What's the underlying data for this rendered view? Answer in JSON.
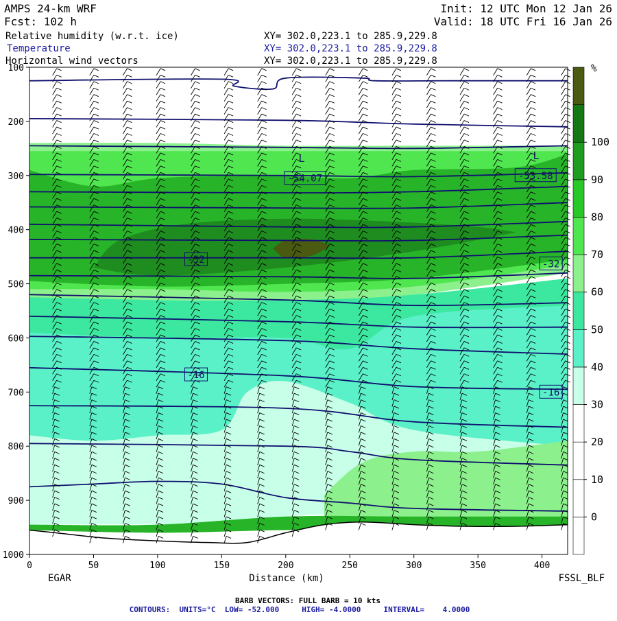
{
  "header": {
    "model": "AMPS 24-km WRF",
    "forecast": "Fcst:  102 h",
    "init": "Init: 12 UTC Mon 12 Jan 26",
    "valid": "Valid: 18 UTC Fri 16 Jan 26",
    "fields": [
      {
        "name": "Relative humidity (w.r.t. ice)",
        "xy": "XY= 302.0,223.1 to 285.9,229.8",
        "color": "#000000"
      },
      {
        "name": "Temperature",
        "xy": "XY= 302.0,223.1 to 285.9,229.8",
        "color": "#1a1aa0"
      },
      {
        "name": "Horizontal wind vectors",
        "xy": "XY= 302.0,223.1 to 285.9,229.8",
        "color": "#000000"
      }
    ]
  },
  "footer": {
    "left_endpoint": "EGAR",
    "right_endpoint": "FSSL_BLF",
    "barb_note": "BARB VECTORS:  FULL BARB = 10 kts",
    "contours_note": "CONTOURS:  UNITS=°C  LOW= -52.000     HIGH= -4.0000     INTERVAL=    4.0000"
  },
  "colors": {
    "temperature_contour": "#101070",
    "rh_80_90": "#28b428",
    "rh_90_100": "#1e8c1e",
    "rh_100_plus": "#4a5a10"
  },
  "chart_data": {
    "type": "heatmap",
    "title": "",
    "xlabel": "Distance (km)",
    "ylabel": "",
    "x_range": [
      0,
      420
    ],
    "y_range": [
      1000,
      100
    ],
    "x_ticks": [
      0,
      50,
      100,
      150,
      200,
      250,
      300,
      350,
      400
    ],
    "y_ticks": [
      100,
      200,
      300,
      400,
      500,
      600,
      700,
      800,
      900,
      1000
    ],
    "colorbar": {
      "unit": "%",
      "levels": [
        -10,
        0,
        10,
        20,
        30,
        40,
        50,
        60,
        70,
        80,
        90,
        100,
        110
      ],
      "labels": [
        0,
        10,
        20,
        30,
        40,
        50,
        60,
        70,
        80,
        90,
        100
      ],
      "colors": [
        "#ffffff",
        "#ffffff",
        "#ffffff",
        "#ffffff",
        "#c8ffe8",
        "#5af0c8",
        "#3ce8a0",
        "#8cf08c",
        "#50e650",
        "#28c828",
        "#1e9c1e",
        "#147814",
        "#4a5a10"
      ]
    },
    "rh_bands": [
      {
        "label": "30-40",
        "color": "#c8ffe8",
        "top": [
          [
            0,
            610
          ],
          [
            100,
            600
          ],
          [
            200,
            590
          ],
          [
            250,
            570
          ],
          [
            300,
            560
          ],
          [
            350,
            555
          ],
          [
            420,
            550
          ]
        ],
        "bottom": [
          [
            0,
            945
          ],
          [
            100,
            945
          ],
          [
            150,
            950
          ],
          [
            200,
            930
          ],
          [
            250,
            925
          ],
          [
            300,
            925
          ],
          [
            420,
            925
          ]
        ]
      },
      {
        "label": "40-50",
        "color": "#5af0c8",
        "top": [
          [
            0,
            560
          ],
          [
            100,
            560
          ],
          [
            200,
            555
          ],
          [
            250,
            540
          ],
          [
            300,
            530
          ],
          [
            350,
            520
          ],
          [
            420,
            510
          ]
        ],
        "bottom": [
          [
            0,
            780
          ],
          [
            50,
            790
          ],
          [
            100,
            780
          ],
          [
            150,
            770
          ],
          [
            170,
            700
          ],
          [
            200,
            680
          ],
          [
            250,
            720
          ],
          [
            300,
            770
          ],
          [
            420,
            800
          ]
        ]
      },
      {
        "label": "50-60",
        "color": "#3ce8a0",
        "top": [
          [
            0,
            520
          ],
          [
            100,
            530
          ],
          [
            200,
            530
          ],
          [
            300,
            520
          ],
          [
            420,
            490
          ]
        ],
        "bottom": [
          [
            0,
            590
          ],
          [
            100,
            600
          ],
          [
            200,
            600
          ],
          [
            250,
            620
          ],
          [
            300,
            560
          ],
          [
            420,
            540
          ]
        ]
      },
      {
        "label": "60-70",
        "color": "#8cf08c",
        "top": [
          [
            0,
            240
          ],
          [
            100,
            240
          ],
          [
            200,
            245
          ],
          [
            300,
            245
          ],
          [
            420,
            245
          ]
        ],
        "bottom": [
          [
            0,
            525
          ],
          [
            100,
            530
          ],
          [
            200,
            530
          ],
          [
            300,
            520
          ],
          [
            420,
            480
          ]
        ]
      },
      {
        "label": "70-80",
        "color": "#50e650",
        "top": [
          [
            0,
            255
          ],
          [
            100,
            255
          ],
          [
            200,
            255
          ],
          [
            300,
            255
          ],
          [
            420,
            255
          ]
        ],
        "bottom": [
          [
            0,
            510
          ],
          [
            100,
            510
          ],
          [
            200,
            515
          ],
          [
            300,
            505
          ],
          [
            420,
            465
          ]
        ]
      },
      {
        "label": "80-90",
        "color": "#28b428",
        "top": [
          [
            0,
            290
          ],
          [
            50,
            320
          ],
          [
            100,
            305
          ],
          [
            180,
            300
          ],
          [
            250,
            305
          ],
          [
            300,
            290
          ],
          [
            380,
            285
          ],
          [
            420,
            260
          ]
        ],
        "bottom": [
          [
            0,
            495
          ],
          [
            100,
            505
          ],
          [
            200,
            500
          ],
          [
            300,
            490
          ],
          [
            420,
            455
          ]
        ]
      },
      {
        "label": "90-100",
        "color": "#1e8c1e",
        "top": [
          [
            50,
            470
          ],
          [
            70,
            420
          ],
          [
            120,
            390
          ],
          [
            200,
            380
          ],
          [
            280,
            385
          ],
          [
            350,
            395
          ],
          [
            380,
            405
          ]
        ],
        "bottom": [
          [
            380,
            405
          ],
          [
            300,
            440
          ],
          [
            200,
            470
          ],
          [
            100,
            485
          ],
          [
            50,
            470
          ]
        ]
      },
      {
        "label": "100+",
        "color": "#4a5a10",
        "top": [
          [
            190,
            435
          ],
          [
            200,
            420
          ],
          [
            220,
            418
          ],
          [
            235,
            430
          ]
        ],
        "bottom": [
          [
            235,
            430
          ],
          [
            220,
            448
          ],
          [
            200,
            452
          ],
          [
            190,
            435
          ]
        ]
      },
      {
        "label": "lower 60-70",
        "color": "#8cf08c",
        "top": [
          [
            230,
            890
          ],
          [
            260,
            830
          ],
          [
            300,
            810
          ],
          [
            350,
            810
          ],
          [
            420,
            790
          ]
        ],
        "bottom": [
          [
            230,
            930
          ],
          [
            300,
            935
          ],
          [
            420,
            935
          ]
        ]
      },
      {
        "label": "lower 80+",
        "color": "#28b428",
        "top": [
          [
            0,
            945
          ],
          [
            100,
            945
          ],
          [
            200,
            930
          ],
          [
            300,
            930
          ],
          [
            420,
            930
          ]
        ],
        "bottom": [
          [
            0,
            955
          ],
          [
            100,
            960
          ],
          [
            200,
            955
          ],
          [
            300,
            955
          ],
          [
            420,
            950
          ]
        ]
      }
    ],
    "terrain": [
      [
        0,
        955
      ],
      [
        20,
        960
      ],
      [
        60,
        970
      ],
      [
        100,
        975
      ],
      [
        140,
        978
      ],
      [
        170,
        978
      ],
      [
        200,
        960
      ],
      [
        230,
        945
      ],
      [
        260,
        940
      ],
      [
        300,
        945
      ],
      [
        340,
        948
      ],
      [
        380,
        948
      ],
      [
        420,
        945
      ]
    ],
    "temperature_contours": [
      [
        [
          0,
          125
        ],
        [
          150,
          122
        ],
        [
          160,
          135
        ],
        [
          190,
          140
        ],
        [
          200,
          120
        ],
        [
          260,
          120
        ],
        [
          270,
          125
        ],
        [
          330,
          125
        ],
        [
          420,
          125
        ]
      ],
      [
        [
          0,
          195
        ],
        [
          200,
          198
        ],
        [
          300,
          205
        ],
        [
          420,
          210
        ]
      ],
      [
        [
          0,
          245
        ],
        [
          200,
          248
        ],
        [
          300,
          250
        ],
        [
          420,
          245
        ]
      ],
      [
        [
          0,
          298
        ],
        [
          200,
          300
        ],
        [
          300,
          302
        ],
        [
          420,
          295
        ]
      ],
      [
        [
          0,
          330
        ],
        [
          200,
          332
        ],
        [
          300,
          330
        ],
        [
          420,
          320
        ]
      ],
      [
        [
          0,
          358
        ],
        [
          200,
          360
        ],
        [
          300,
          360
        ],
        [
          420,
          350
        ]
      ],
      [
        [
          0,
          390
        ],
        [
          200,
          395
        ],
        [
          300,
          395
        ],
        [
          420,
          385
        ]
      ],
      [
        [
          0,
          418
        ],
        [
          200,
          420
        ],
        [
          300,
          420
        ],
        [
          420,
          410
        ]
      ],
      [
        [
          0,
          452
        ],
        [
          200,
          452
        ],
        [
          300,
          452
        ],
        [
          420,
          440
        ]
      ],
      [
        [
          0,
          485
        ],
        [
          200,
          487
        ],
        [
          300,
          490
        ],
        [
          420,
          480
        ]
      ],
      [
        [
          0,
          520
        ],
        [
          200,
          530
        ],
        [
          300,
          540
        ],
        [
          420,
          535
        ]
      ],
      [
        [
          0,
          560
        ],
        [
          200,
          570
        ],
        [
          300,
          580
        ],
        [
          420,
          580
        ]
      ],
      [
        [
          0,
          597
        ],
        [
          200,
          605
        ],
        [
          300,
          620
        ],
        [
          420,
          630
        ]
      ],
      [
        [
          0,
          655
        ],
        [
          200,
          670
        ],
        [
          300,
          690
        ],
        [
          420,
          695
        ]
      ],
      [
        [
          0,
          725
        ],
        [
          200,
          730
        ],
        [
          300,
          755
        ],
        [
          420,
          765
        ]
      ],
      [
        [
          0,
          795
        ],
        [
          200,
          800
        ],
        [
          250,
          810
        ],
        [
          300,
          825
        ],
        [
          420,
          835
        ]
      ],
      [
        [
          0,
          875
        ],
        [
          50,
          870
        ],
        [
          100,
          865
        ],
        [
          150,
          870
        ],
        [
          200,
          895
        ],
        [
          250,
          905
        ],
        [
          300,
          915
        ],
        [
          420,
          920
        ]
      ]
    ],
    "contour_labels": [
      {
        "text": "-54.07",
        "x": 215,
        "y": 305
      },
      {
        "text": "-53.58",
        "x": 395,
        "y": 300
      },
      {
        "text": "-32",
        "x": 130,
        "y": 455
      },
      {
        "text": "-32",
        "x": 407,
        "y": 463
      },
      {
        "text": "-16",
        "x": 130,
        "y": 668
      },
      {
        "text": "-16",
        "x": 407,
        "y": 700
      }
    ],
    "low_markers": [
      {
        "text": "L",
        "x": 210,
        "y": 275
      },
      {
        "text": "L",
        "x": 393,
        "y": 270
      }
    ],
    "barb_columns_km": [
      18,
      47,
      73,
      99,
      126,
      152,
      178,
      205,
      231,
      257,
      283,
      310,
      336,
      362,
      388,
      415
    ]
  }
}
